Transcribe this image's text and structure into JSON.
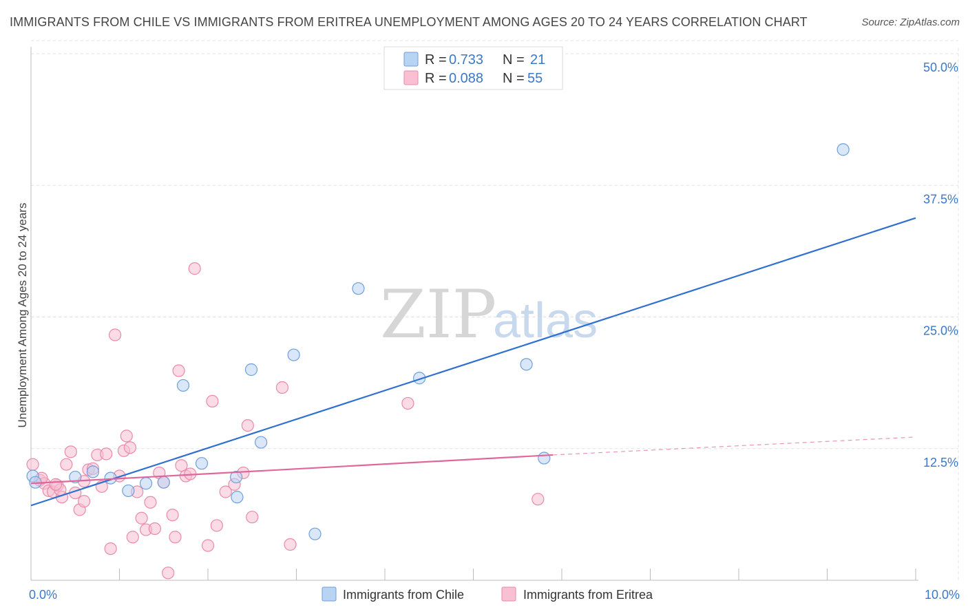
{
  "title": "IMMIGRANTS FROM CHILE VS IMMIGRANTS FROM ERITREA UNEMPLOYMENT AMONG AGES 20 TO 24 YEARS CORRELATION CHART",
  "source": "Source: ZipAtlas.com",
  "watermark": {
    "zip": "ZIP",
    "atlas": "atlas"
  },
  "colors": {
    "chile_fill": "#b9d3f3",
    "chile_stroke": "#6f9fd8",
    "chile_line": "#2e6fd0",
    "eritrea_fill": "#f8c0d2",
    "eritrea_stroke": "#e98aa9",
    "eritrea_line": "#e0679a",
    "axis_text": "#3a78c9",
    "grid": "#e0e0e0"
  },
  "legend": {
    "rows": [
      {
        "r_label": "R =",
        "r_value": "0.733",
        "n_label": "N =",
        "n_value": "21"
      },
      {
        "r_label": "R =",
        "r_value": "0.088",
        "n_label": "N =",
        "n_value": "55"
      }
    ]
  },
  "chart_data": {
    "type": "scatter",
    "title": "IMMIGRANTS FROM CHILE VS IMMIGRANTS FROM ERITREA UNEMPLOYMENT AMONG AGES 20 TO 24 YEARS CORRELATION CHART",
    "xlabel": "",
    "ylabel": "Unemployment Among Ages 20 to 24 years",
    "xlim": [
      0,
      10
    ],
    "ylim": [
      0,
      50
    ],
    "x_tick_labels": [
      "0.0%",
      "10.0%"
    ],
    "y_ticks": [
      12.5,
      25.0,
      37.5,
      50.0
    ],
    "y_tick_labels": [
      "12.5%",
      "25.0%",
      "37.5%",
      "50.0%"
    ],
    "grid": true,
    "legend_position": "top-center",
    "series": [
      {
        "name": "Immigrants from Chile",
        "points": [
          [
            0.02,
            9.9
          ],
          [
            0.5,
            9.8
          ],
          [
            0.7,
            10.3
          ],
          [
            0.9,
            9.7
          ],
          [
            1.1,
            8.5
          ],
          [
            1.3,
            9.2
          ],
          [
            1.5,
            9.3
          ],
          [
            1.72,
            18.5
          ],
          [
            1.93,
            11.1
          ],
          [
            2.33,
            7.9
          ],
          [
            2.32,
            9.8
          ],
          [
            2.49,
            20.0
          ],
          [
            2.6,
            13.1
          ],
          [
            2.97,
            21.4
          ],
          [
            3.21,
            4.4
          ],
          [
            3.7,
            27.7
          ],
          [
            4.39,
            19.2
          ],
          [
            5.6,
            20.5
          ],
          [
            5.8,
            11.6
          ],
          [
            9.18,
            40.9
          ],
          [
            0.05,
            9.3
          ]
        ],
        "trend": {
          "x": [
            0,
            10
          ],
          "y": [
            7.1,
            34.4
          ]
        }
      },
      {
        "name": "Immigrants from Eritrea",
        "points": [
          [
            0.02,
            11.0
          ],
          [
            0.1,
            9.5
          ],
          [
            0.15,
            9.2
          ],
          [
            0.2,
            8.5
          ],
          [
            0.25,
            8.4
          ],
          [
            0.3,
            9.0
          ],
          [
            0.35,
            7.9
          ],
          [
            0.4,
            11.0
          ],
          [
            0.45,
            12.2
          ],
          [
            0.5,
            8.3
          ],
          [
            0.55,
            6.7
          ],
          [
            0.6,
            7.5
          ],
          [
            0.65,
            10.5
          ],
          [
            0.7,
            10.6
          ],
          [
            0.75,
            11.9
          ],
          [
            0.8,
            8.9
          ],
          [
            0.85,
            12.0
          ],
          [
            0.9,
            3.0
          ],
          [
            0.95,
            23.3
          ],
          [
            1.0,
            9.9
          ],
          [
            1.05,
            12.3
          ],
          [
            1.08,
            13.7
          ],
          [
            1.12,
            12.6
          ],
          [
            1.15,
            4.1
          ],
          [
            1.2,
            8.4
          ],
          [
            1.25,
            5.9
          ],
          [
            1.3,
            4.8
          ],
          [
            1.35,
            7.4
          ],
          [
            1.4,
            4.9
          ],
          [
            1.45,
            10.2
          ],
          [
            1.5,
            9.3
          ],
          [
            1.55,
            0.7
          ],
          [
            1.6,
            6.2
          ],
          [
            1.63,
            4.1
          ],
          [
            1.67,
            19.9
          ],
          [
            1.7,
            10.9
          ],
          [
            1.75,
            9.9
          ],
          [
            1.8,
            10.1
          ],
          [
            1.85,
            29.6
          ],
          [
            2.0,
            3.3
          ],
          [
            2.05,
            17.0
          ],
          [
            2.1,
            5.2
          ],
          [
            2.2,
            8.4
          ],
          [
            2.3,
            9.1
          ],
          [
            2.4,
            10.2
          ],
          [
            2.45,
            14.7
          ],
          [
            2.5,
            6.0
          ],
          [
            2.84,
            18.3
          ],
          [
            2.93,
            3.4
          ],
          [
            4.26,
            16.8
          ],
          [
            5.73,
            7.7
          ],
          [
            0.33,
            8.6
          ],
          [
            0.6,
            9.4
          ],
          [
            0.12,
            9.7
          ],
          [
            0.28,
            9.1
          ]
        ],
        "trend": {
          "x": [
            0,
            5.9
          ],
          "y": [
            9.2,
            11.9
          ],
          "dashed_extension": {
            "x": [
              5.9,
              10
            ],
            "y": [
              11.9,
              13.6
            ]
          }
        }
      }
    ]
  },
  "bottom_legend": [
    {
      "label": "Immigrants from Chile"
    },
    {
      "label": "Immigrants from Eritrea"
    }
  ]
}
